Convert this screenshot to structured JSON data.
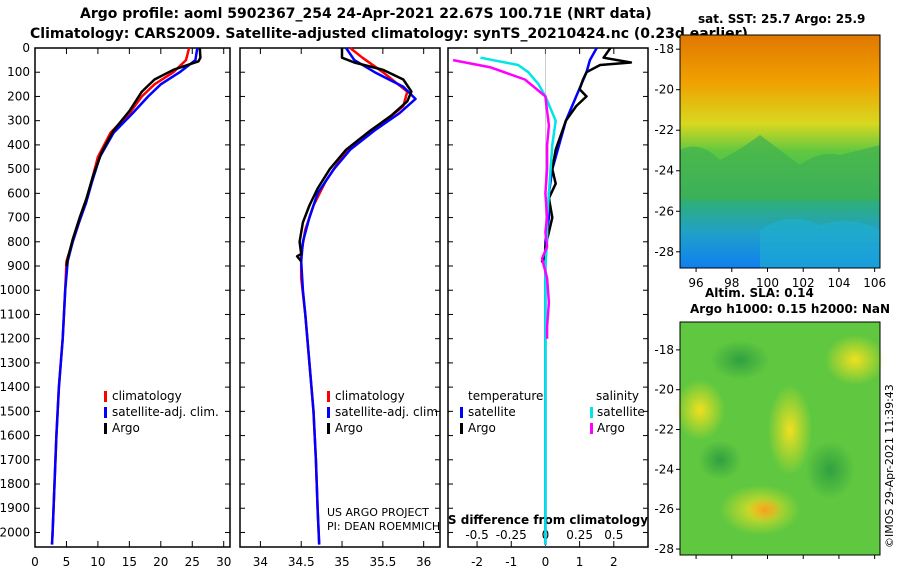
{
  "title_line1": "Argo profile: aoml 5902367_254 24-Apr-2021 22.67S 100.71E (NRT data)",
  "title_line2": "Climatology: CARS2009. Satellite-adjusted climatology: synTS_20210424.nc (0.23d earlier)",
  "colors": {
    "climatology": "#ff0000",
    "satellite": "#0000ff",
    "argo": "#000000",
    "sat_sal": "#00e5e5",
    "argo_sal": "#ff00ff"
  },
  "chart_data": [
    {
      "type": "line",
      "name": "temperature-profile",
      "xlim": [
        0,
        31
      ],
      "ylim": [
        0,
        2060
      ],
      "y_reversed": true,
      "xticks": [
        0,
        5,
        10,
        15,
        20,
        25,
        30
      ],
      "yticks": [
        0,
        100,
        200,
        300,
        400,
        500,
        600,
        700,
        800,
        900,
        1000,
        1100,
        1200,
        1300,
        1400,
        1500,
        1600,
        1700,
        1800,
        1900,
        2000
      ],
      "legend": [
        "climatology",
        "satellite-adj. clim.",
        "Argo"
      ],
      "series": [
        {
          "name": "climatology",
          "color": "#ff0000",
          "points": [
            [
              24.5,
              0
            ],
            [
              24,
              50
            ],
            [
              22,
              100
            ],
            [
              19,
              150
            ],
            [
              17,
              200
            ],
            [
              15,
              270
            ],
            [
              12,
              350
            ],
            [
              10,
              450
            ],
            [
              9,
              550
            ],
            [
              8,
              640
            ],
            [
              7,
              720
            ],
            [
              6,
              800
            ],
            [
              5,
              880
            ],
            [
              4.8,
              1000
            ],
            [
              4.4,
              1200
            ],
            [
              3.8,
              1400
            ],
            [
              3.4,
              1600
            ],
            [
              3.1,
              1800
            ],
            [
              2.8,
              2000
            ],
            [
              2.7,
              2050
            ]
          ]
        },
        {
          "name": "satellite-adj. clim.",
          "color": "#0000ff",
          "points": [
            [
              25.8,
              0
            ],
            [
              25.5,
              50
            ],
            [
              23,
              100
            ],
            [
              20,
              150
            ],
            [
              18,
              200
            ],
            [
              15.5,
              270
            ],
            [
              12.5,
              350
            ],
            [
              10.3,
              450
            ],
            [
              9.1,
              550
            ],
            [
              8.1,
              640
            ],
            [
              7,
              720
            ],
            [
              6,
              800
            ],
            [
              5.2,
              880
            ],
            [
              4.8,
              1000
            ],
            [
              4.4,
              1200
            ],
            [
              3.8,
              1400
            ],
            [
              3.4,
              1600
            ],
            [
              3.1,
              1800
            ],
            [
              2.8,
              2000
            ],
            [
              2.7,
              2050
            ]
          ]
        },
        {
          "name": "Argo",
          "color": "#000000",
          "points": [
            [
              26.2,
              0
            ],
            [
              26.3,
              40
            ],
            [
              26,
              55
            ],
            [
              22,
              90
            ],
            [
              19,
              130
            ],
            [
              17,
              180
            ],
            [
              15,
              260
            ],
            [
              12.5,
              340
            ],
            [
              10.6,
              430
            ],
            [
              9.2,
              530
            ],
            [
              8.2,
              620
            ],
            [
              7.1,
              700
            ],
            [
              6,
              790
            ],
            [
              5.2,
              870
            ],
            [
              5,
              900
            ]
          ]
        }
      ]
    },
    {
      "type": "line",
      "name": "salinity-profile",
      "xlim": [
        33.75,
        36.2
      ],
      "ylim": [
        0,
        2060
      ],
      "y_reversed": true,
      "xticks": [
        34,
        34.5,
        35,
        35.5,
        36
      ],
      "legend": [
        "climatology",
        "satellite-adj. clim.",
        "Argo"
      ],
      "credit": [
        "US ARGO PROJECT",
        "PI: DEAN ROEMMICH"
      ],
      "series": [
        {
          "name": "climatology",
          "color": "#ff0000",
          "points": [
            [
              35.1,
              0
            ],
            [
              35.25,
              40
            ],
            [
              35.5,
              100
            ],
            [
              35.8,
              180
            ],
            [
              35.75,
              240
            ],
            [
              35.5,
              310
            ],
            [
              35.2,
              380
            ],
            [
              35,
              450
            ],
            [
              34.8,
              550
            ],
            [
              34.65,
              650
            ],
            [
              34.55,
              750
            ],
            [
              34.5,
              850
            ],
            [
              34.5,
              950
            ],
            [
              34.55,
              1100
            ],
            [
              34.6,
              1300
            ],
            [
              34.65,
              1500
            ],
            [
              34.68,
              1700
            ],
            [
              34.7,
              1900
            ],
            [
              34.72,
              2050
            ]
          ]
        },
        {
          "name": "satellite-adj. clim.",
          "color": "#0000ff",
          "points": [
            [
              35.05,
              0
            ],
            [
              35.15,
              50
            ],
            [
              35.4,
              100
            ],
            [
              35.75,
              160
            ],
            [
              35.9,
              210
            ],
            [
              35.7,
              270
            ],
            [
              35.4,
              340
            ],
            [
              35.1,
              420
            ],
            [
              34.9,
              500
            ],
            [
              34.7,
              600
            ],
            [
              34.6,
              700
            ],
            [
              34.52,
              800
            ],
            [
              34.5,
              880
            ],
            [
              34.52,
              1000
            ],
            [
              34.55,
              1100
            ],
            [
              34.6,
              1300
            ],
            [
              34.65,
              1500
            ],
            [
              34.68,
              1700
            ],
            [
              34.7,
              1900
            ],
            [
              34.72,
              2050
            ]
          ]
        },
        {
          "name": "Argo",
          "color": "#000000",
          "points": [
            [
              35,
              0
            ],
            [
              35,
              40
            ],
            [
              35.15,
              60
            ],
            [
              35.5,
              90
            ],
            [
              35.75,
              130
            ],
            [
              35.85,
              180
            ],
            [
              35.8,
              220
            ],
            [
              35.6,
              280
            ],
            [
              35.35,
              340
            ],
            [
              35.05,
              420
            ],
            [
              34.85,
              500
            ],
            [
              34.7,
              580
            ],
            [
              34.6,
              650
            ],
            [
              34.52,
              720
            ],
            [
              34.48,
              800
            ],
            [
              34.5,
              850
            ],
            [
              34.45,
              860
            ],
            [
              34.5,
              880
            ]
          ]
        }
      ]
    },
    {
      "type": "line",
      "name": "difference-profile",
      "xlim": [
        -2.85,
        3
      ],
      "ylim": [
        0,
        2060
      ],
      "y_reversed": true,
      "xticks": [
        -2,
        -1,
        0,
        1,
        2
      ],
      "xtick_labels": [
        "-2",
        "-1",
        "0",
        "1",
        "2"
      ],
      "s_xticks": [
        -0.5,
        -0.25,
        0,
        0.25,
        0.5
      ],
      "s_xtick_labels": [
        "-0.5",
        "-0.25",
        "0",
        "0.25",
        "0.5"
      ],
      "s_label": "S difference from climatology",
      "legend_temperature": {
        "header": "temperature",
        "items": [
          "satellite",
          "Argo"
        ]
      },
      "legend_salinity": {
        "header": "salinity",
        "items": [
          "satellite",
          "Argo"
        ]
      },
      "series": [
        {
          "name": "temperature satellite",
          "color": "#0000ff",
          "points": [
            [
              1.5,
              0
            ],
            [
              1.3,
              50
            ],
            [
              1.2,
              100
            ],
            [
              0.9,
              200
            ],
            [
              0.6,
              300
            ],
            [
              0.4,
              400
            ],
            [
              0.2,
              500
            ],
            [
              0.1,
              600
            ],
            [
              0.1,
              700
            ],
            [
              0,
              800
            ],
            [
              0,
              900
            ],
            [
              0,
              1000
            ],
            [
              0,
              1200
            ],
            [
              0,
              1600
            ],
            [
              0,
              2000
            ],
            [
              0,
              2050
            ]
          ]
        },
        {
          "name": "temperature Argo",
          "color": "#000000",
          "points": [
            [
              1.9,
              0
            ],
            [
              1.7,
              40
            ],
            [
              2.5,
              60
            ],
            [
              1.6,
              70
            ],
            [
              1.2,
              100
            ],
            [
              1.1,
              130
            ],
            [
              1,
              170
            ],
            [
              1.2,
              200
            ],
            [
              0.9,
              240
            ],
            [
              0.6,
              300
            ],
            [
              0.5,
              340
            ],
            [
              0.3,
              420
            ],
            [
              0.2,
              500
            ],
            [
              0.3,
              560
            ],
            [
              0.1,
              620
            ],
            [
              0.2,
              700
            ],
            [
              0.1,
              760
            ],
            [
              0,
              820
            ],
            [
              0,
              860
            ],
            [
              -0.1,
              880
            ],
            [
              0,
              900
            ]
          ]
        },
        {
          "name": "salinity satellite",
          "color": "#00e5e5",
          "points": [
            [
              -1.9,
              40
            ],
            [
              -0.8,
              70
            ],
            [
              -0.5,
              100
            ],
            [
              -0.2,
              150
            ],
            [
              0,
              200
            ],
            [
              0.3,
              300
            ],
            [
              0.2,
              400
            ],
            [
              0.15,
              500
            ],
            [
              0.1,
              600
            ],
            [
              0.05,
              700
            ],
            [
              0.05,
              800
            ],
            [
              0,
              900
            ],
            [
              0,
              1000
            ],
            [
              0,
              1200
            ],
            [
              0,
              1600
            ],
            [
              0,
              2000
            ],
            [
              0,
              2050
            ]
          ]
        },
        {
          "name": "salinity Argo",
          "color": "#ff00ff",
          "points": [
            [
              -2.7,
              50
            ],
            [
              -1.6,
              80
            ],
            [
              -0.6,
              130
            ],
            [
              0,
              200
            ],
            [
              0.05,
              260
            ],
            [
              0.1,
              320
            ],
            [
              0.05,
              400
            ],
            [
              0.05,
              500
            ],
            [
              0,
              600
            ],
            [
              0.05,
              700
            ],
            [
              0,
              760
            ],
            [
              0.05,
              820
            ],
            [
              -0.1,
              870
            ],
            [
              0.05,
              950
            ],
            [
              0.1,
              1050
            ],
            [
              0.05,
              1150
            ],
            [
              0.05,
              1200
            ]
          ]
        }
      ]
    },
    {
      "type": "heatmap",
      "name": "sst-map",
      "title": "sat. SST: 25.7 Argo: 25.9",
      "xticks": [
        96,
        98,
        100,
        102,
        104,
        106
      ],
      "yticks": [
        -18,
        -20,
        -22,
        -24,
        -26,
        -28
      ]
    },
    {
      "type": "heatmap",
      "name": "sla-map",
      "title_lines": [
        "Altim. SLA: 0.14",
        "Argo h1000: 0.15 h2000: NaN"
      ],
      "yticks": [
        -18,
        -20,
        -22,
        -24,
        -26,
        -28
      ]
    }
  ],
  "side_label": "©IMOS 29-Apr-2021 11:39:43"
}
